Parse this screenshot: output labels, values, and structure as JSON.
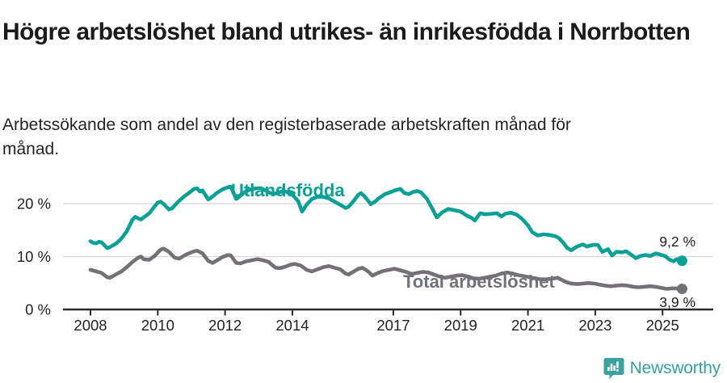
{
  "header": {
    "title": "Högre arbetslöshet bland utrikes- än inrikesfödda i Norrbotten",
    "subtitle": "Arbetssökande som andel av den registerbaserade arbetskraften månad för månad."
  },
  "footer": {
    "brand": "Newsworthy",
    "brand_color": "#37a09b"
  },
  "colors": {
    "background": "#ffffff",
    "title_text": "#191c1a",
    "axis_line": "#2b2b2b",
    "axis_text": "#222222",
    "gridline": "#dadada",
    "series_foreign_born": "#0aa096",
    "series_total": "#757078"
  },
  "chart_data": {
    "type": "line",
    "title": "Högre arbetslöshet bland utrikes- än inrikesfödda i Norrbotten",
    "subtitle": "Arbetssökande som andel av den registerbaserade arbetskraften månad för månad.",
    "xlabel": "",
    "ylabel": "",
    "unit": "%",
    "grid": "horizontal",
    "xlim": [
      2007.2,
      2026.5
    ],
    "ylim": [
      0,
      25
    ],
    "yticks": [
      {
        "value": 0,
        "label": "0 %"
      },
      {
        "value": 10,
        "label": "10 %"
      },
      {
        "value": 20,
        "label": "20 %"
      }
    ],
    "xticks": [
      {
        "value": 2008,
        "label": "2008"
      },
      {
        "value": 2010,
        "label": "2010"
      },
      {
        "value": 2012,
        "label": "2012"
      },
      {
        "value": 2014,
        "label": "2014"
      },
      {
        "value": 2017,
        "label": "2017"
      },
      {
        "value": 2019,
        "label": "2019"
      },
      {
        "value": 2021,
        "label": "2021"
      },
      {
        "value": 2023,
        "label": "2023"
      },
      {
        "value": 2025,
        "label": "2025"
      }
    ],
    "series": [
      {
        "name": "Utlandsfödda",
        "color": "#0aa096",
        "end_label": "9,2 %",
        "end_value": 9.2,
        "points": [
          [
            2008.0,
            12.9
          ],
          [
            2008.08,
            12.6
          ],
          [
            2008.17,
            12.5
          ],
          [
            2008.25,
            12.8
          ],
          [
            2008.33,
            12.7
          ],
          [
            2008.5,
            11.6
          ],
          [
            2008.58,
            11.8
          ],
          [
            2008.75,
            12.4
          ],
          [
            2008.92,
            13.4
          ],
          [
            2009.08,
            14.8
          ],
          [
            2009.25,
            17.0
          ],
          [
            2009.33,
            17.5
          ],
          [
            2009.42,
            17.2
          ],
          [
            2009.5,
            17.0
          ],
          [
            2009.58,
            17.4
          ],
          [
            2009.75,
            18.2
          ],
          [
            2009.92,
            19.6
          ],
          [
            2010.0,
            20.2
          ],
          [
            2010.08,
            20.4
          ],
          [
            2010.17,
            20.0
          ],
          [
            2010.33,
            18.9
          ],
          [
            2010.42,
            19.1
          ],
          [
            2010.58,
            20.2
          ],
          [
            2010.75,
            21.2
          ],
          [
            2010.92,
            22.0
          ],
          [
            2011.08,
            22.8
          ],
          [
            2011.17,
            22.9
          ],
          [
            2011.25,
            22.3
          ],
          [
            2011.33,
            22.5
          ],
          [
            2011.5,
            20.8
          ],
          [
            2011.58,
            21.1
          ],
          [
            2011.75,
            22.0
          ],
          [
            2011.92,
            22.7
          ],
          [
            2012.08,
            23.1
          ],
          [
            2012.17,
            23.2
          ],
          [
            2012.33,
            20.9
          ],
          [
            2012.42,
            21.3
          ],
          [
            2012.58,
            22.2
          ],
          [
            2012.75,
            22.7
          ],
          [
            2012.92,
            22.9
          ],
          [
            2013.08,
            22.9
          ],
          [
            2013.25,
            22.3
          ],
          [
            2013.42,
            21.8
          ],
          [
            2013.58,
            22.1
          ],
          [
            2013.75,
            22.4
          ],
          [
            2013.92,
            22.0
          ],
          [
            2014.0,
            21.7
          ],
          [
            2014.17,
            20.5
          ],
          [
            2014.29,
            18.5
          ],
          [
            2014.42,
            19.8
          ],
          [
            2014.58,
            20.9
          ],
          [
            2014.75,
            21.3
          ],
          [
            2014.92,
            21.3
          ],
          [
            2015.08,
            21.0
          ],
          [
            2015.25,
            20.4
          ],
          [
            2015.42,
            19.8
          ],
          [
            2015.58,
            19.2
          ],
          [
            2015.67,
            19.4
          ],
          [
            2015.83,
            20.6
          ],
          [
            2015.96,
            21.7
          ],
          [
            2016.04,
            22.0
          ],
          [
            2016.17,
            21.2
          ],
          [
            2016.33,
            19.9
          ],
          [
            2016.46,
            20.4
          ],
          [
            2016.58,
            21.1
          ],
          [
            2016.75,
            21.8
          ],
          [
            2016.92,
            22.2
          ],
          [
            2017.08,
            22.6
          ],
          [
            2017.21,
            22.8
          ],
          [
            2017.33,
            22.0
          ],
          [
            2017.46,
            21.8
          ],
          [
            2017.58,
            22.2
          ],
          [
            2017.71,
            22.4
          ],
          [
            2017.83,
            22.1
          ],
          [
            2018.0,
            20.9
          ],
          [
            2018.17,
            18.9
          ],
          [
            2018.29,
            17.4
          ],
          [
            2018.46,
            18.4
          ],
          [
            2018.63,
            19.0
          ],
          [
            2018.79,
            18.8
          ],
          [
            2019.0,
            18.5
          ],
          [
            2019.17,
            17.8
          ],
          [
            2019.33,
            17.3
          ],
          [
            2019.42,
            16.8
          ],
          [
            2019.58,
            18.2
          ],
          [
            2019.75,
            18.0
          ],
          [
            2019.92,
            18.1
          ],
          [
            2020.08,
            18.2
          ],
          [
            2020.21,
            17.6
          ],
          [
            2020.33,
            18.1
          ],
          [
            2020.5,
            18.3
          ],
          [
            2020.67,
            17.9
          ],
          [
            2020.83,
            17.1
          ],
          [
            2021.0,
            15.9
          ],
          [
            2021.13,
            14.6
          ],
          [
            2021.29,
            14.0
          ],
          [
            2021.46,
            14.2
          ],
          [
            2021.63,
            14.1
          ],
          [
            2021.79,
            13.9
          ],
          [
            2021.92,
            13.5
          ],
          [
            2022.04,
            12.7
          ],
          [
            2022.17,
            11.6
          ],
          [
            2022.29,
            11.2
          ],
          [
            2022.46,
            11.9
          ],
          [
            2022.63,
            12.3
          ],
          [
            2022.75,
            11.9
          ],
          [
            2022.92,
            12.2
          ],
          [
            2023.08,
            12.2
          ],
          [
            2023.21,
            10.9
          ],
          [
            2023.38,
            11.4
          ],
          [
            2023.5,
            10.2
          ],
          [
            2023.63,
            10.9
          ],
          [
            2023.79,
            10.8
          ],
          [
            2023.92,
            11.0
          ],
          [
            2024.08,
            10.3
          ],
          [
            2024.21,
            9.7
          ],
          [
            2024.33,
            10.1
          ],
          [
            2024.5,
            10.3
          ],
          [
            2024.63,
            10.1
          ],
          [
            2024.79,
            10.6
          ],
          [
            2024.92,
            10.4
          ],
          [
            2025.08,
            10.1
          ],
          [
            2025.21,
            9.4
          ],
          [
            2025.33,
            9.1
          ],
          [
            2025.42,
            9.5
          ],
          [
            2025.58,
            9.2
          ]
        ]
      },
      {
        "name": "Total arbetslöshet",
        "color": "#757078",
        "end_label": "3,9 %",
        "end_value": 3.9,
        "points": [
          [
            2008.0,
            7.5
          ],
          [
            2008.17,
            7.2
          ],
          [
            2008.33,
            6.9
          ],
          [
            2008.5,
            6.1
          ],
          [
            2008.58,
            6.0
          ],
          [
            2008.75,
            6.6
          ],
          [
            2008.92,
            7.2
          ],
          [
            2009.08,
            8.0
          ],
          [
            2009.25,
            9.0
          ],
          [
            2009.42,
            9.8
          ],
          [
            2009.5,
            10.0
          ],
          [
            2009.58,
            9.5
          ],
          [
            2009.75,
            9.4
          ],
          [
            2009.92,
            10.2
          ],
          [
            2010.08,
            11.3
          ],
          [
            2010.17,
            11.5
          ],
          [
            2010.33,
            10.9
          ],
          [
            2010.5,
            9.8
          ],
          [
            2010.63,
            9.6
          ],
          [
            2010.79,
            10.2
          ],
          [
            2010.92,
            10.6
          ],
          [
            2011.08,
            11.0
          ],
          [
            2011.17,
            11.1
          ],
          [
            2011.33,
            10.6
          ],
          [
            2011.5,
            9.2
          ],
          [
            2011.63,
            8.8
          ],
          [
            2011.79,
            9.4
          ],
          [
            2011.92,
            9.9
          ],
          [
            2012.08,
            10.3
          ],
          [
            2012.17,
            10.2
          ],
          [
            2012.33,
            8.8
          ],
          [
            2012.46,
            8.7
          ],
          [
            2012.63,
            9.1
          ],
          [
            2012.79,
            9.3
          ],
          [
            2012.96,
            9.5
          ],
          [
            2013.13,
            9.3
          ],
          [
            2013.29,
            9.0
          ],
          [
            2013.5,
            7.9
          ],
          [
            2013.63,
            7.8
          ],
          [
            2013.79,
            8.1
          ],
          [
            2013.96,
            8.5
          ],
          [
            2014.08,
            8.6
          ],
          [
            2014.25,
            8.3
          ],
          [
            2014.42,
            7.5
          ],
          [
            2014.58,
            7.2
          ],
          [
            2014.75,
            7.6
          ],
          [
            2014.92,
            8.0
          ],
          [
            2015.08,
            8.2
          ],
          [
            2015.25,
            7.9
          ],
          [
            2015.42,
            7.6
          ],
          [
            2015.58,
            6.8
          ],
          [
            2015.67,
            6.6
          ],
          [
            2015.83,
            7.2
          ],
          [
            2015.96,
            7.7
          ],
          [
            2016.08,
            7.9
          ],
          [
            2016.25,
            7.2
          ],
          [
            2016.38,
            6.4
          ],
          [
            2016.54,
            6.9
          ],
          [
            2016.71,
            7.3
          ],
          [
            2016.88,
            7.5
          ],
          [
            2017.04,
            7.7
          ],
          [
            2017.21,
            7.4
          ],
          [
            2017.38,
            7.1
          ],
          [
            2017.54,
            6.7
          ],
          [
            2017.71,
            6.9
          ],
          [
            2017.88,
            7.1
          ],
          [
            2018.04,
            7.0
          ],
          [
            2018.21,
            6.6
          ],
          [
            2018.38,
            6.2
          ],
          [
            2018.54,
            6.0
          ],
          [
            2018.71,
            6.2
          ],
          [
            2018.88,
            6.4
          ],
          [
            2019.04,
            6.5
          ],
          [
            2019.21,
            6.2
          ],
          [
            2019.38,
            5.9
          ],
          [
            2019.54,
            5.8
          ],
          [
            2019.71,
            6.0
          ],
          [
            2019.88,
            6.2
          ],
          [
            2020.04,
            6.4
          ],
          [
            2020.21,
            6.8
          ],
          [
            2020.38,
            7.0
          ],
          [
            2020.54,
            6.8
          ],
          [
            2020.71,
            6.5
          ],
          [
            2020.88,
            6.3
          ],
          [
            2021.04,
            6.1
          ],
          [
            2021.21,
            5.9
          ],
          [
            2021.38,
            5.7
          ],
          [
            2021.54,
            5.7
          ],
          [
            2021.71,
            5.8
          ],
          [
            2021.88,
            6.0
          ],
          [
            2022.0,
            5.6
          ],
          [
            2022.13,
            5.2
          ],
          [
            2022.29,
            4.9
          ],
          [
            2022.46,
            4.8
          ],
          [
            2022.63,
            4.9
          ],
          [
            2022.79,
            5.0
          ],
          [
            2022.96,
            4.9
          ],
          [
            2023.13,
            4.7
          ],
          [
            2023.29,
            4.5
          ],
          [
            2023.46,
            4.4
          ],
          [
            2023.63,
            4.5
          ],
          [
            2023.79,
            4.6
          ],
          [
            2023.96,
            4.5
          ],
          [
            2024.13,
            4.3
          ],
          [
            2024.29,
            4.2
          ],
          [
            2024.46,
            4.3
          ],
          [
            2024.63,
            4.4
          ],
          [
            2024.79,
            4.3
          ],
          [
            2024.96,
            4.1
          ],
          [
            2025.13,
            3.9
          ],
          [
            2025.29,
            4.0
          ],
          [
            2025.46,
            3.95
          ],
          [
            2025.58,
            3.9
          ]
        ]
      }
    ]
  }
}
